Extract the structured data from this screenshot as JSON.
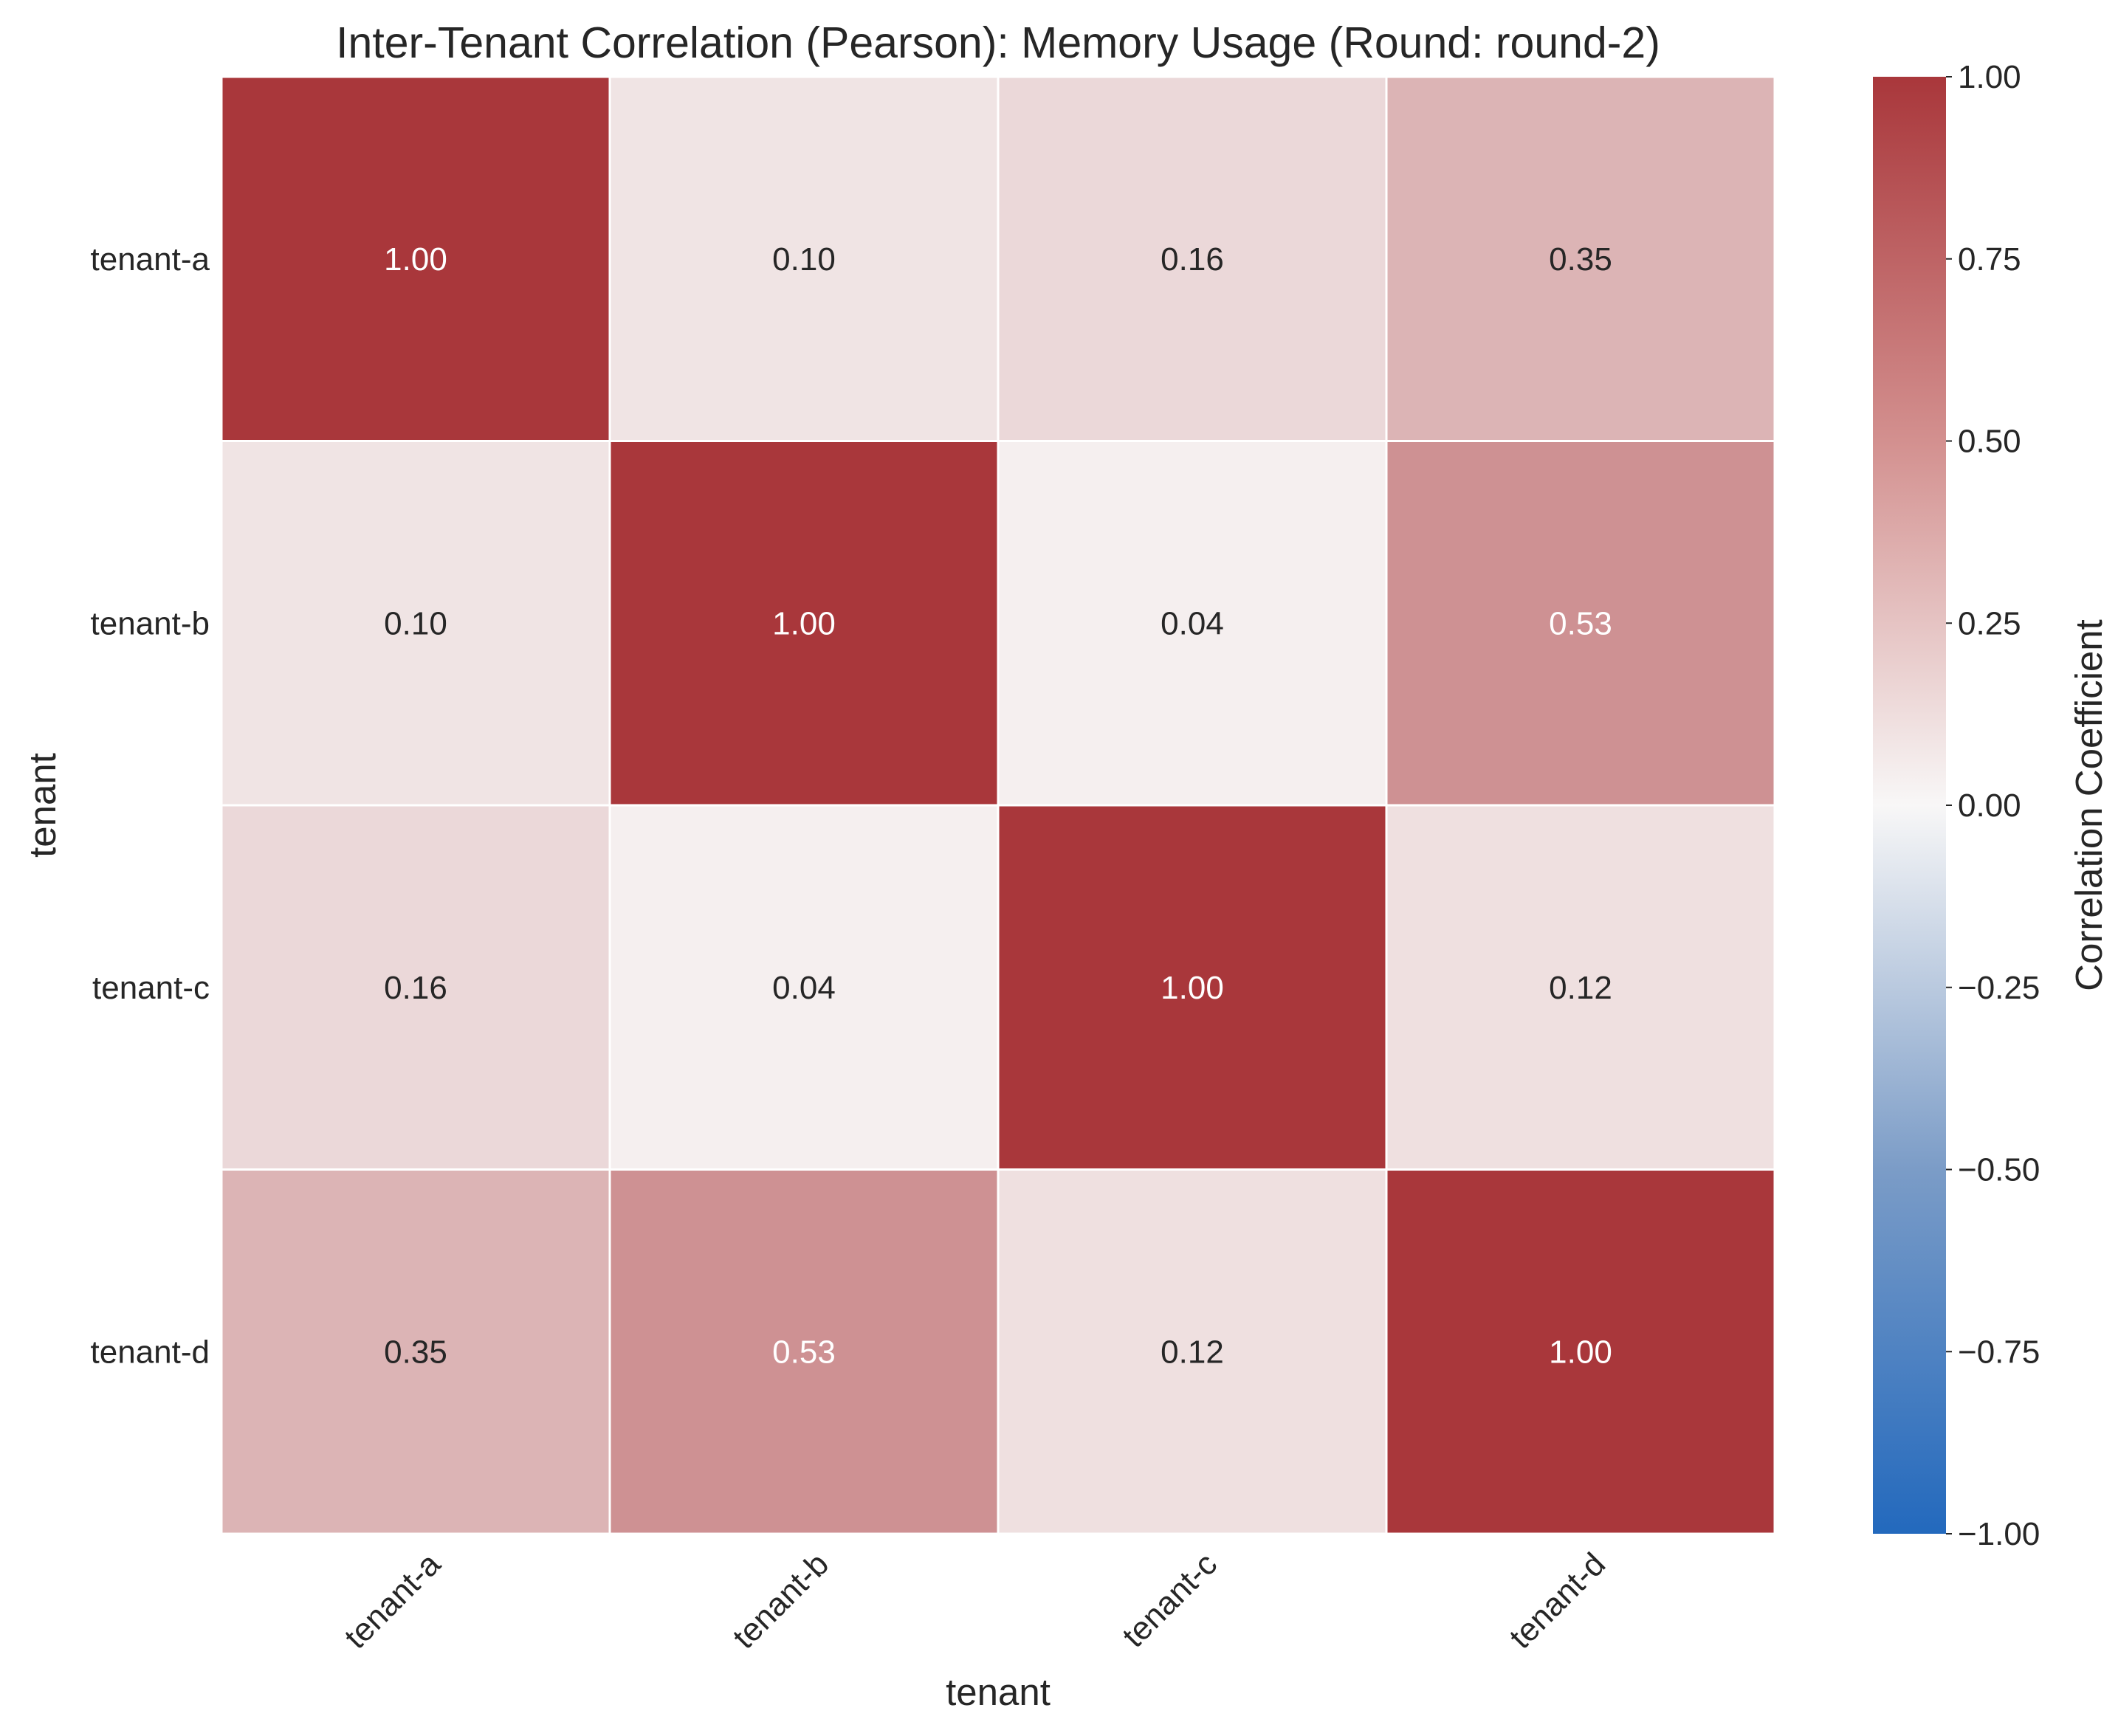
{
  "chart_data": {
    "type": "heatmap",
    "title": "Inter-Tenant Correlation (Pearson): Memory Usage (Round: round-2)",
    "xlabel": "tenant",
    "ylabel": "tenant",
    "x_categories": [
      "tenant-a",
      "tenant-b",
      "tenant-c",
      "tenant-d"
    ],
    "y_categories": [
      "tenant-a",
      "tenant-b",
      "tenant-c",
      "tenant-d"
    ],
    "values": [
      [
        1.0,
        0.1,
        0.16,
        0.35
      ],
      [
        0.1,
        1.0,
        0.04,
        0.53
      ],
      [
        0.16,
        0.04,
        1.0,
        0.12
      ],
      [
        0.35,
        0.53,
        0.12,
        1.0
      ]
    ],
    "value_format": "2 decimals",
    "colorbar": {
      "label": "Correlation Coefficient",
      "range": [
        -1.0,
        1.0
      ],
      "ticks": [
        1.0,
        0.75,
        0.5,
        0.25,
        0.0,
        -0.25,
        -0.5,
        -0.75,
        -1.0
      ],
      "tick_labels": [
        "1.00",
        "0.75",
        "0.50",
        "0.25",
        "0.00",
        "−0.25",
        "−0.50",
        "−0.75",
        "−1.00"
      ],
      "colormap": "vlag",
      "colors": {
        "negative": "#2369bd",
        "zero": "#f8f7f7",
        "positive": "#a9373b"
      }
    },
    "legend": "colorbar on right"
  }
}
